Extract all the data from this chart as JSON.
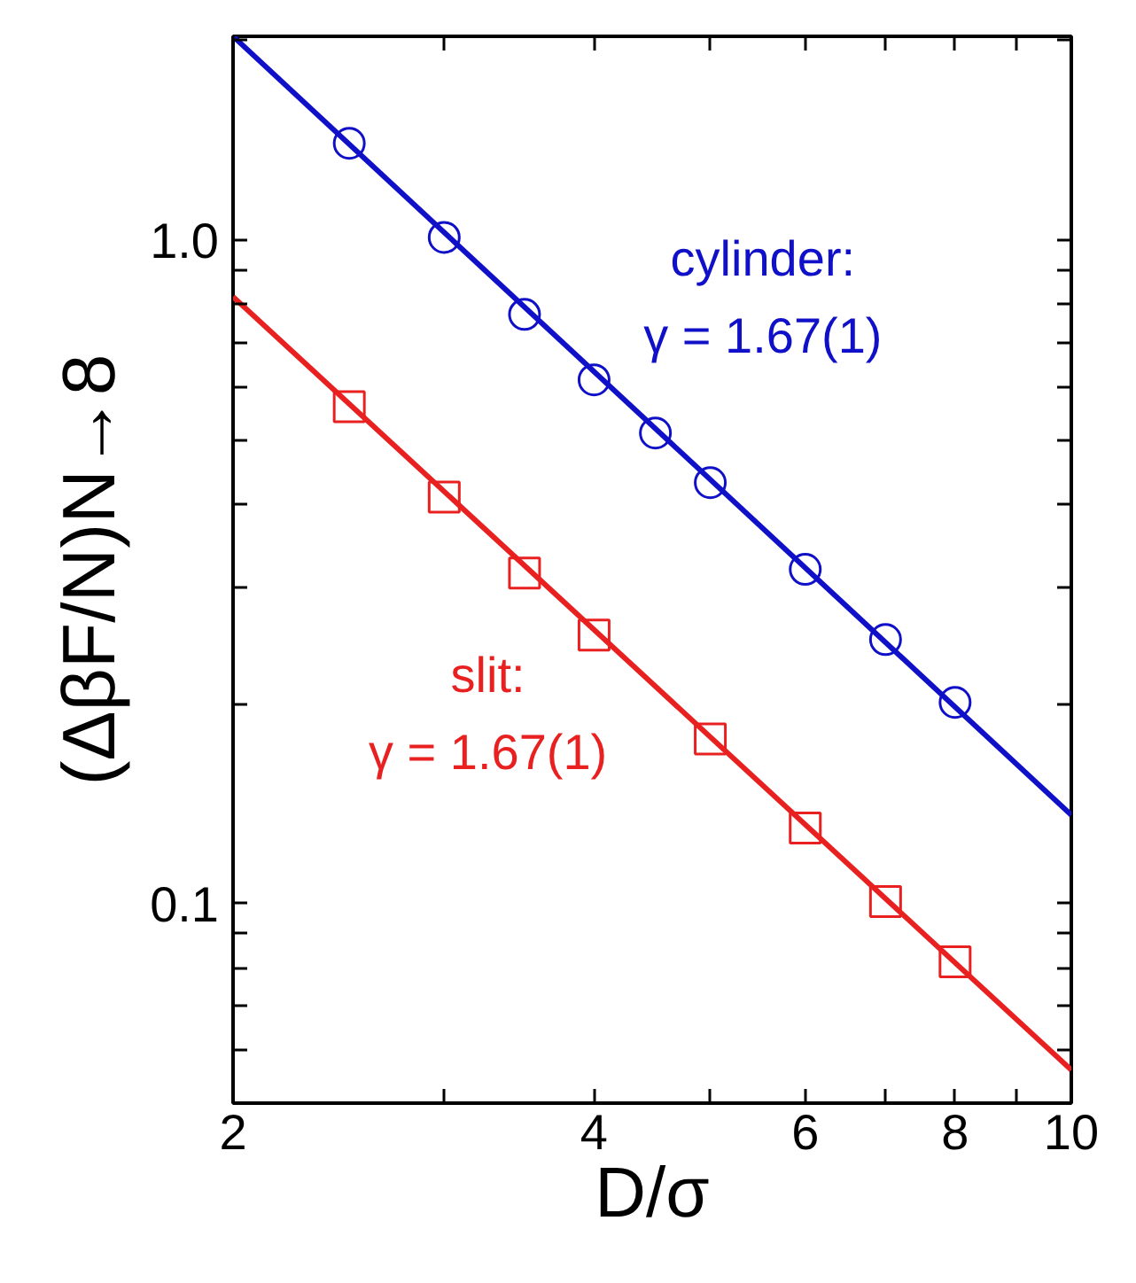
{
  "chart_data": {
    "type": "scatter",
    "xlabel": "D/σ",
    "ylabel": "(ΔβF/N)N→8",
    "log": "xy",
    "xlim": [
      2,
      10
    ],
    "ylim": [
      0.05,
      2.03
    ],
    "xticks": [
      2,
      {
        "value": 3,
        "label": null
      },
      4,
      {
        "value": 5,
        "label": null
      },
      6,
      {
        "value": 7,
        "label": null
      },
      8,
      {
        "value": 9,
        "label": null
      },
      10
    ],
    "yticks": [
      {
        "value": 0.05,
        "label": null
      },
      {
        "value": 0.06,
        "label": null
      },
      {
        "value": 0.07,
        "label": null
      },
      {
        "value": 0.08,
        "label": null
      },
      {
        "value": 0.09,
        "label": null
      },
      0.1,
      {
        "value": 0.2,
        "label": null
      },
      {
        "value": 0.3,
        "label": null
      },
      {
        "value": 0.4,
        "label": null
      },
      {
        "value": 0.5,
        "label": null
      },
      {
        "value": 0.6,
        "label": null
      },
      {
        "value": 0.7,
        "label": null
      },
      {
        "value": 0.8,
        "label": null
      },
      {
        "value": 0.9,
        "label": null
      },
      {
        "value": 1,
        "label": "1.0"
      },
      {
        "value": 2,
        "label": null
      }
    ],
    "grid": false,
    "series": [
      {
        "type": "scatter",
        "marker": "circle",
        "color": "#1010c8",
        "x": [
          2.5,
          3.0,
          3.5,
          4.0,
          4.5,
          5.0,
          6.0,
          7.0,
          8.0
        ],
        "values": [
          1.4,
          1.01,
          0.773,
          0.616,
          0.512,
          0.431,
          0.319,
          0.25,
          0.201
        ]
      },
      {
        "type": "scatter",
        "marker": "square",
        "color": "#e82020",
        "x": [
          2.5,
          3.0,
          3.5,
          4.0,
          5.0,
          6.0,
          7.0,
          8.0
        ],
        "values": [
          0.561,
          0.41,
          0.315,
          0.254,
          0.177,
          0.13,
          0.1007,
          0.0817
        ]
      },
      {
        "type": "line",
        "line_style": "solid",
        "color": "#1010c8",
        "x": [
          2,
          10
        ],
        "values": [
          2.03,
          0.136
        ]
      },
      {
        "type": "line",
        "line_style": "solid",
        "color": "#e82020",
        "x": [
          2,
          10
        ],
        "values": [
          0.822,
          0.0561
        ]
      }
    ],
    "annotations": [
      "cylinder:\nγ = 1.67(1)",
      "slit:\nγ = 1.67(1)"
    ]
  }
}
